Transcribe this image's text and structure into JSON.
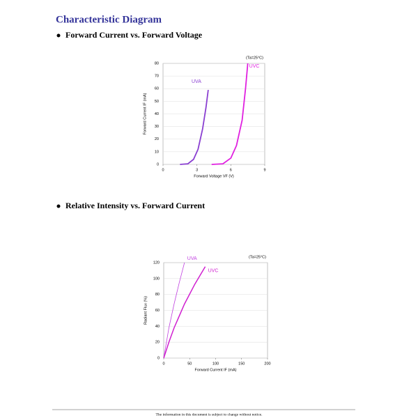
{
  "header": {
    "title": "Characteristic Diagram"
  },
  "sections": [
    {
      "heading": "Forward Current vs. Forward Voltage"
    },
    {
      "heading": "Relative Intensity vs. Forward Current"
    }
  ],
  "footer": {
    "text": "The information in this document is subject to change without notice."
  },
  "chart_data": [
    {
      "type": "line",
      "annotation": "(Ta=25°C)",
      "x_label": "Forward Voltage VF (V)",
      "y_label": "Forward Current IF (mA)",
      "xlim": [
        0,
        9
      ],
      "xticks": [
        0,
        3,
        6,
        9
      ],
      "ylim": [
        0,
        80
      ],
      "yticks": [
        0,
        10,
        20,
        30,
        40,
        50,
        60,
        70,
        80
      ],
      "grid": true,
      "series": [
        {
          "name": "UVA",
          "color": "#8a3fd1",
          "x": [
            1.5,
            2.2,
            2.7,
            3.1,
            3.5,
            3.8,
            4.0
          ],
          "values": [
            0,
            0.5,
            4,
            12,
            28,
            45,
            59
          ]
        },
        {
          "name": "UVC",
          "color": "#e020e0",
          "x": [
            4.3,
            5.3,
            6.0,
            6.5,
            7.0,
            7.3,
            7.5
          ],
          "values": [
            0,
            0.5,
            5,
            15,
            35,
            60,
            80
          ]
        }
      ]
    },
    {
      "type": "line",
      "annotation": "(Ta=25°C)",
      "x_label": "Forward Current IF (mA)",
      "y_label": "Radiant Flux (%)",
      "xlim": [
        0,
        200
      ],
      "xticks": [
        0,
        50,
        100,
        150,
        200
      ],
      "ylim": [
        0,
        120
      ],
      "yticks": [
        0,
        20,
        40,
        60,
        80,
        100,
        120
      ],
      "grid": true,
      "series": [
        {
          "name": "UVA",
          "color": "#c040e0",
          "x": [
            0,
            10,
            20,
            30,
            40
          ],
          "values": [
            0,
            38,
            68,
            95,
            120
          ]
        },
        {
          "name": "UVC",
          "color": "#d020d0",
          "x": [
            0,
            10,
            20,
            40,
            60,
            80
          ],
          "values": [
            0,
            20,
            38,
            68,
            93,
            115
          ]
        }
      ]
    }
  ]
}
